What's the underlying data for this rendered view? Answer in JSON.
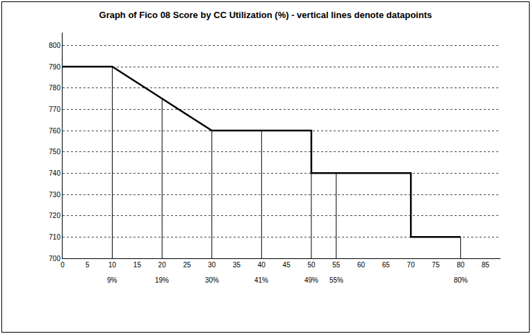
{
  "chart_data": {
    "type": "line",
    "title": "Graph of Fico 08 Score by CC Utilization (%) - vertical lines denote datapoints",
    "x": [
      0,
      10,
      20,
      30,
      40,
      50,
      50,
      55,
      70,
      70,
      80
    ],
    "values": [
      790,
      790,
      775,
      760,
      760,
      760,
      740,
      740,
      740,
      710,
      710
    ],
    "color": "#000000",
    "xlim": [
      0,
      88
    ],
    "xticks": [
      0,
      5,
      10,
      15,
      20,
      25,
      30,
      35,
      40,
      45,
      50,
      55,
      60,
      65,
      70,
      75,
      80,
      85
    ],
    "ylim": [
      700,
      806
    ],
    "yticks": [
      700,
      710,
      720,
      730,
      740,
      750,
      760,
      770,
      780,
      790,
      800
    ],
    "grid": true,
    "annotations": [
      {
        "x": 10,
        "text": "9%"
      },
      {
        "x": 20,
        "text": "19%"
      },
      {
        "x": 30,
        "text": "30%"
      },
      {
        "x": 40,
        "text": "41%"
      },
      {
        "x": 50,
        "text": "49%"
      },
      {
        "x": 55,
        "text": "55%"
      },
      {
        "x": 80,
        "text": "80%"
      }
    ]
  }
}
